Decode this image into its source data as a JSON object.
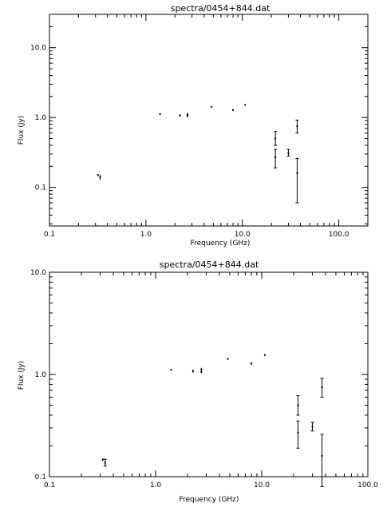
{
  "chart_data": [
    {
      "type": "scatter",
      "title": "spectra/0454+844.dat",
      "xlabel": "Frequency (GHz)",
      "ylabel": "Flux (Jy)",
      "xscale": "log",
      "yscale": "log",
      "xlim": [
        0.1,
        200
      ],
      "ylim": [
        0.028,
        30
      ],
      "x_ticks": [
        0.1,
        1.0,
        10.0,
        100.0
      ],
      "x_tick_labels": [
        "0.1",
        "1.0",
        "10.0",
        "100.0"
      ],
      "y_ticks": [
        0.1,
        1.0,
        10.0
      ],
      "y_tick_labels": [
        "0.1",
        "1.0",
        "10.0"
      ],
      "grid": false,
      "points": [
        {
          "x": 0.318,
          "y": 0.15,
          "ylo": 0.145,
          "yhi": 0.155
        },
        {
          "x": 0.335,
          "y": 0.14,
          "ylo": 0.128,
          "yhi": 0.152
        },
        {
          "x": 1.4,
          "y": 1.12,
          "ylo": 1.09,
          "yhi": 1.15
        },
        {
          "x": 2.25,
          "y": 1.07,
          "ylo": 1.03,
          "yhi": 1.11
        },
        {
          "x": 2.7,
          "y": 1.1,
          "ylo": 1.04,
          "yhi": 1.16
        },
        {
          "x": 2.7,
          "y": 1.05,
          "ylo": 1.01,
          "yhi": 1.09
        },
        {
          "x": 4.8,
          "y": 1.42,
          "ylo": 1.39,
          "yhi": 1.45
        },
        {
          "x": 8.0,
          "y": 1.28,
          "ylo": 1.24,
          "yhi": 1.32
        },
        {
          "x": 10.7,
          "y": 1.52,
          "ylo": 1.49,
          "yhi": 1.55
        },
        {
          "x": 22.0,
          "y": 0.5,
          "ylo": 0.4,
          "yhi": 0.63
        },
        {
          "x": 22.0,
          "y": 0.27,
          "ylo": 0.19,
          "yhi": 0.35
        },
        {
          "x": 30.0,
          "y": 0.31,
          "ylo": 0.28,
          "yhi": 0.35
        },
        {
          "x": 37.0,
          "y": 0.75,
          "ylo": 0.6,
          "yhi": 0.92
        },
        {
          "x": 37.0,
          "y": 0.16,
          "ylo": 0.06,
          "yhi": 0.26
        }
      ]
    },
    {
      "type": "scatter",
      "title": "spectra/0454+844.dat",
      "xlabel": "Frequency (GHz)",
      "ylabel": "Flux (Jy)",
      "xscale": "log",
      "yscale": "log",
      "xlim": [
        0.1,
        100
      ],
      "ylim": [
        0.1,
        10
      ],
      "x_ticks": [
        0.1,
        1.0,
        10.0,
        100.0
      ],
      "x_tick_labels": [
        "0.1",
        "1.0",
        "10.0",
        "100.0"
      ],
      "y_ticks": [
        0.1,
        1.0,
        10.0
      ],
      "y_tick_labels": [
        "0.1",
        "1.0",
        "10.0"
      ],
      "grid": false,
      "points": [
        {
          "x": 0.318,
          "y": 0.147,
          "ylo": 0.143,
          "yhi": 0.151
        },
        {
          "x": 0.335,
          "y": 0.137,
          "ylo": 0.127,
          "yhi": 0.148
        },
        {
          "x": 1.4,
          "y": 1.11,
          "ylo": 1.09,
          "yhi": 1.13
        },
        {
          "x": 2.25,
          "y": 1.08,
          "ylo": 1.04,
          "yhi": 1.12
        },
        {
          "x": 2.7,
          "y": 1.12,
          "ylo": 1.08,
          "yhi": 1.16
        },
        {
          "x": 2.7,
          "y": 1.06,
          "ylo": 1.03,
          "yhi": 1.09
        },
        {
          "x": 4.8,
          "y": 1.42,
          "ylo": 1.39,
          "yhi": 1.45
        },
        {
          "x": 8.0,
          "y": 1.28,
          "ylo": 1.24,
          "yhi": 1.32
        },
        {
          "x": 10.7,
          "y": 1.55,
          "ylo": 1.52,
          "yhi": 1.58
        },
        {
          "x": 22.0,
          "y": 0.5,
          "ylo": 0.4,
          "yhi": 0.62
        },
        {
          "x": 22.0,
          "y": 0.27,
          "ylo": 0.19,
          "yhi": 0.35
        },
        {
          "x": 30.0,
          "y": 0.31,
          "ylo": 0.28,
          "yhi": 0.34
        },
        {
          "x": 37.0,
          "y": 0.75,
          "ylo": 0.6,
          "yhi": 0.92
        },
        {
          "x": 37.0,
          "y": 0.16,
          "ylo": 0.08,
          "yhi": 0.26
        }
      ]
    }
  ]
}
